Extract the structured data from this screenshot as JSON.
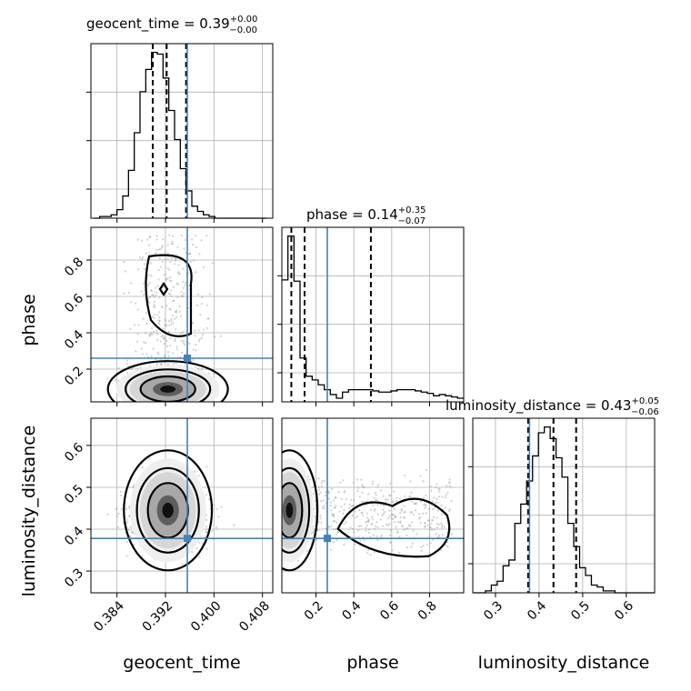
{
  "chart_data": {
    "type": "corner",
    "parameters": [
      "geocent_time",
      "phase",
      "luminosity_distance"
    ],
    "truth_color": "#4682b4",
    "truths": {
      "geocent_time": 0.3956,
      "phase": 0.26,
      "luminosity_distance": 0.378
    },
    "ranges": {
      "geocent_time": [
        0.3797,
        0.4097
      ],
      "phase": [
        0.02,
        0.98
      ],
      "luminosity_distance": [
        0.248,
        0.665
      ]
    },
    "ticks": {
      "geocent_time": [
        "0.384",
        "0.392",
        "0.400",
        "0.408"
      ],
      "phase": [
        "0.2",
        "0.4",
        "0.6",
        "0.8"
      ],
      "luminosity_distance": [
        "0.3",
        "0.4",
        "0.5",
        "0.6"
      ]
    },
    "y_ticks": {
      "phase": [
        "0.2",
        "0.4",
        "0.6",
        "0.8"
      ],
      "luminosity_distance": [
        "0.3",
        "0.4",
        "0.5",
        "0.6"
      ]
    },
    "titles": {
      "geocent_time": {
        "label": "geocent_time = 0.39",
        "plus": "+0.00",
        "minus": "−0.00"
      },
      "phase": {
        "label": "phase = 0.14",
        "plus": "+0.35",
        "minus": "−0.07"
      },
      "luminosity_distance": {
        "label": "luminosity_distance = 0.43",
        "plus": "+0.05",
        "minus": "−0.06"
      }
    },
    "quantiles": {
      "geocent_time": [
        0.3899,
        0.3922,
        0.3954
      ],
      "phase": [
        0.07,
        0.14,
        0.49
      ],
      "luminosity_distance": [
        0.375,
        0.433,
        0.485
      ]
    },
    "histograms": {
      "geocent_time": {
        "edges_start": 0.3802,
        "bin_width": 0.00095,
        "counts": [
          0,
          1,
          1,
          2,
          5,
          13,
          28,
          50,
          74,
          87,
          97,
          96,
          82,
          63,
          46,
          29,
          16,
          7,
          4,
          2,
          1,
          0,
          0,
          0,
          0,
          0,
          0,
          0,
          0,
          0
        ]
      },
      "phase": {
        "edges_start": 0.02,
        "bin_width": 0.032,
        "counts": [
          100,
          136,
          99,
          36,
          21,
          18,
          14,
          10,
          6,
          3,
          8,
          10,
          10,
          10,
          10,
          9,
          8,
          8,
          9,
          10,
          10,
          10,
          9,
          8,
          7,
          5,
          6,
          5,
          4,
          3
        ]
      },
      "luminosity_distance": {
        "edges_start": 0.25,
        "bin_width": 0.0135,
        "counts": [
          0,
          0,
          1,
          4,
          6,
          14,
          17,
          36,
          46,
          58,
          71,
          83,
          86,
          80,
          70,
          60,
          36,
          24,
          13,
          9,
          4,
          3,
          1,
          1,
          0,
          0,
          0,
          0,
          0,
          0,
          0
        ]
      }
    }
  }
}
